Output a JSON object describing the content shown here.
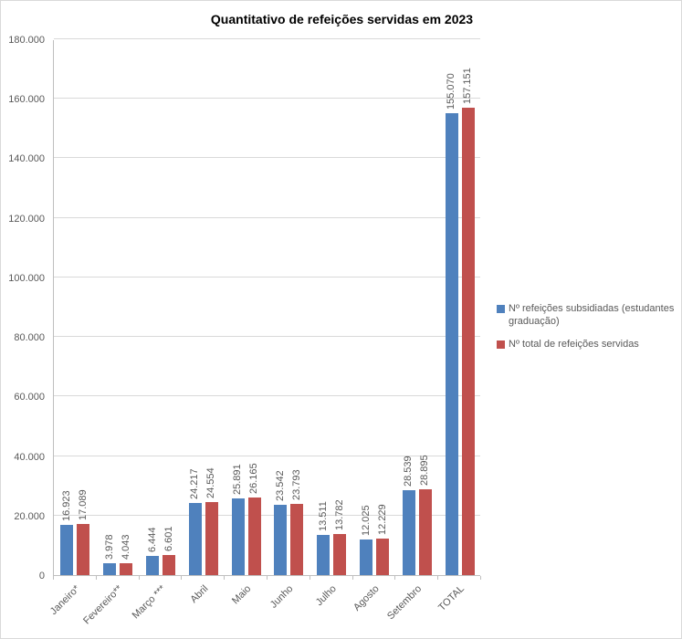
{
  "chart_data": {
    "type": "bar",
    "title": "Quantitativo de refeições servidas em 2023",
    "categories": [
      "Janeiro*",
      "Fevereiro**",
      "Março ***",
      "Abril",
      "Maio",
      "Junho",
      "Julho",
      "Agosto",
      "Setembro",
      "TOTAL"
    ],
    "series": [
      {
        "name": "Nº refeições subsidiadas (estudantes graduação)",
        "color": "#4F81BD",
        "values": [
          16923,
          3978,
          6444,
          24217,
          25891,
          23542,
          13511,
          12025,
          28539,
          155070
        ],
        "labels": [
          "16.923",
          "3.978",
          "6.444",
          "24.217",
          "25.891",
          "23.542",
          "13.511",
          "12.025",
          "28.539",
          "155.070"
        ]
      },
      {
        "name": "Nº total de refeições servidas",
        "color": "#C0504D",
        "values": [
          17089,
          4043,
          6601,
          24554,
          26165,
          23793,
          13782,
          12229,
          28895,
          157151
        ],
        "labels": [
          "17.089",
          "4.043",
          "6.601",
          "24.554",
          "26.165",
          "23.793",
          "13.782",
          "12.229",
          "28.895",
          "157.151"
        ]
      }
    ],
    "xlabel": "",
    "ylabel": "",
    "ylim": [
      0,
      180000
    ],
    "yticks": [
      0,
      20000,
      40000,
      60000,
      80000,
      100000,
      120000,
      140000,
      160000,
      180000
    ],
    "ytick_labels": [
      "0",
      "20.000",
      "40.000",
      "60.000",
      "80.000",
      "100.000",
      "120.000",
      "140.000",
      "160.000",
      "180.000"
    ],
    "grid": true,
    "legend_position": "right",
    "data_labels_rotation": -90,
    "category_labels_rotation": -45
  }
}
